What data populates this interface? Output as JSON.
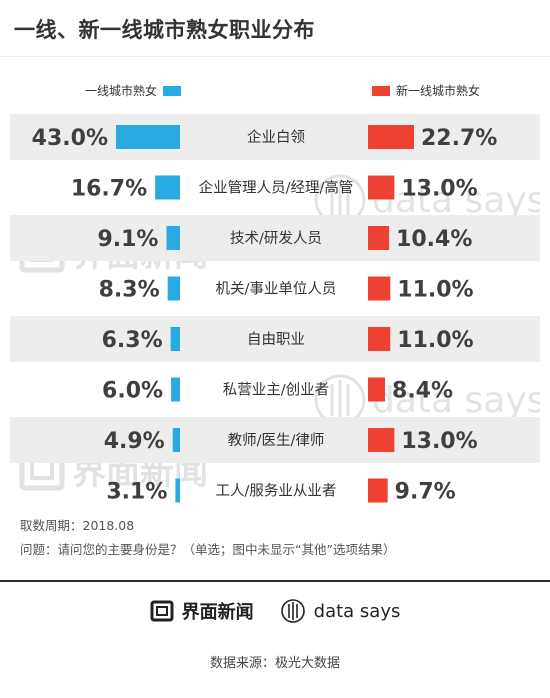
{
  "title": "一线、新一线城市熟女职业分布",
  "legend": {
    "left": "一线城市熟女",
    "right": "新一线城市熟女",
    "left_color": "#29abe2",
    "right_color": "#ec4133"
  },
  "chart_data": {
    "type": "bar",
    "categories": [
      "企业白领",
      "企业管理人员/经理/高管",
      "技术/研发人员",
      "机关/事业单位人员",
      "自由职业",
      "私营业主/创业者",
      "教师/医生/律师",
      "工人/服务业从业者"
    ],
    "series": [
      {
        "name": "一线城市熟女",
        "values": [
          43.0,
          16.7,
          9.1,
          8.3,
          6.3,
          6.0,
          4.9,
          3.1
        ],
        "labels": [
          "43.0%",
          "16.7%",
          "9.1%",
          "8.3%",
          "6.3%",
          "6.0%",
          "4.9%",
          "3.1%"
        ],
        "color": "#29abe2"
      },
      {
        "name": "新一线城市熟女",
        "values": [
          22.7,
          13.0,
          10.4,
          11.0,
          11.0,
          8.4,
          13.0,
          9.7
        ],
        "labels": [
          "22.7%",
          "13.0%",
          "10.4%",
          "11.0%",
          "11.0%",
          "8.4%",
          "13.0%",
          "9.7%"
        ],
        "color": "#ec4133"
      }
    ],
    "unit": "%",
    "grid": false,
    "legend_position": "top"
  },
  "footnotes": {
    "period": "取数周期：2018.08",
    "question": "问题：请问您的主要身份是？（单选；图中未显示“其他”选项结果）"
  },
  "brands": {
    "jiemian": "界面新闻",
    "datasays": "data says",
    "jiemian_icon": "jiemian-logo-icon",
    "datasays_icon": "datasays-logo-icon"
  },
  "watermarks": {
    "jiemian": "界面新闻",
    "datasays": "data says"
  },
  "source": "数据来源：极光大数据"
}
